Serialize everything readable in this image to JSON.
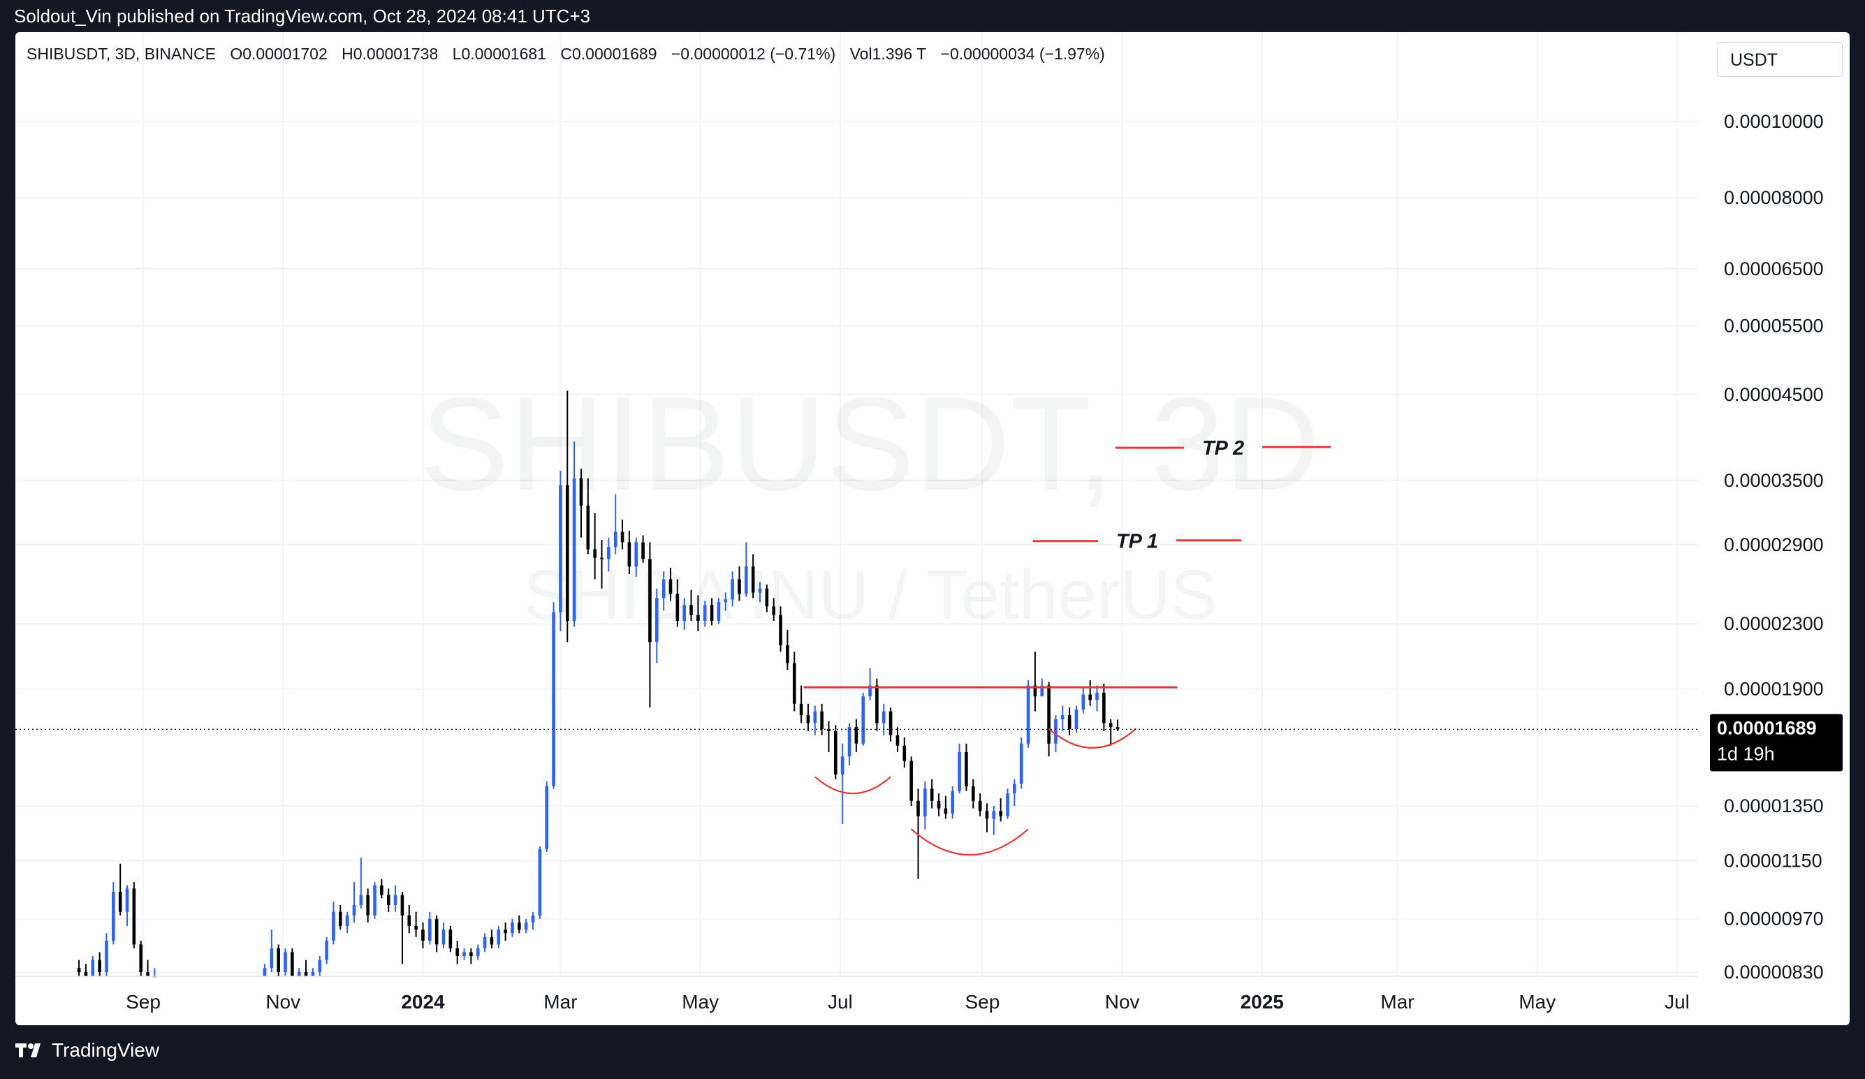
{
  "header": {
    "published_line": "Soldout_Vin published on TradingView.com, Oct 28, 2024 08:41 UTC+3"
  },
  "legend": {
    "symbol": "SHIBUSDT, 3D, BINANCE",
    "open": "O0.00001702",
    "high": "H0.00001738",
    "low": "L0.00001681",
    "close": "C0.00001689",
    "change": "−0.00000012 (−0.71%)",
    "volume": "Vol1.396 T",
    "vol_change": "−0.00000034 (−1.97%)"
  },
  "currency_button": "USDT",
  "watermark": {
    "symbol": "SHIBUSDT, 3D",
    "description": "SHIBA INU / TetherUS"
  },
  "price_label": {
    "price": "0.00001689",
    "countdown": "1d 19h"
  },
  "footer": {
    "brand": "TradingView"
  },
  "colors": {
    "up": "#2962ff",
    "down": "#000000",
    "annotation": "#e53935",
    "background": "#131722"
  },
  "chart_data": {
    "type": "candlestick",
    "title": "SHIBUSDT, 3D, BINANCE",
    "xlabel": "",
    "ylabel": "",
    "y_scale": "log",
    "ylim": [
      8.2e-06,
      0.000112
    ],
    "grid": true,
    "y_ticks": [
      "0.00010000",
      "0.00008000",
      "0.00006500",
      "0.00005500",
      "0.00004500",
      "0.00003500",
      "0.00002900",
      "0.00002300",
      "0.00001900",
      "0.00001350",
      "0.00001150",
      "0.00000970",
      "0.00000830"
    ],
    "x_ticks": [
      {
        "label": "Sep",
        "date": "2023-09-01"
      },
      {
        "label": "Nov",
        "date": "2023-11-01"
      },
      {
        "label": "2024",
        "date": "2024-01-01"
      },
      {
        "label": "Mar",
        "date": "2024-03-01"
      },
      {
        "label": "May",
        "date": "2024-05-01"
      },
      {
        "label": "Jul",
        "date": "2024-07-01"
      },
      {
        "label": "Sep",
        "date": "2024-09-01"
      },
      {
        "label": "Nov",
        "date": "2024-11-01"
      },
      {
        "label": "2025",
        "date": "2025-01-01"
      },
      {
        "label": "Mar",
        "date": "2025-03-01"
      },
      {
        "label": "May",
        "date": "2025-05-01"
      },
      {
        "label": "Jul",
        "date": "2025-07-01"
      }
    ],
    "last_price": 1.689e-05,
    "candles": [
      [
        "2023-08-04",
        8.4e-06,
        8.6e-06,
        8.1e-06,
        8.3e-06
      ],
      [
        "2023-08-07",
        8.3e-06,
        8.5e-06,
        8.1e-06,
        8.2e-06
      ],
      [
        "2023-08-10",
        8.2e-06,
        8.7e-06,
        8.1e-06,
        8.6e-06
      ],
      [
        "2023-08-13",
        8.6e-06,
        8.8e-06,
        8.2e-06,
        8.3e-06
      ],
      [
        "2023-08-16",
        8.3e-06,
        9.3e-06,
        8.2e-06,
        9.1e-06
      ],
      [
        "2023-08-19",
        9.1e-06,
        1.08e-05,
        9e-06,
        1.05e-05
      ],
      [
        "2023-08-22",
        1.05e-05,
        1.14e-05,
        9.8e-06,
        9.9e-06
      ],
      [
        "2023-08-25",
        9.9e-06,
        1.07e-05,
        9.5e-06,
        1.06e-05
      ],
      [
        "2023-08-28",
        1.06e-05,
        1.08e-05,
        8.9e-06,
        9e-06
      ],
      [
        "2023-08-31",
        9e-06,
        9.1e-06,
        8.2e-06,
        8.3e-06
      ],
      [
        "2023-09-03",
        8.3e-06,
        8.6e-06,
        8.1e-06,
        8.2e-06
      ],
      [
        "2023-09-06",
        8.2e-06,
        8.4e-06,
        8.1e-06,
        8.2e-06
      ],
      [
        "2023-10-24",
        8.1e-06,
        8.5e-06,
        8.1e-06,
        8.4e-06
      ],
      [
        "2023-10-27",
        8.4e-06,
        9.4e-06,
        8.3e-06,
        8.9e-06
      ],
      [
        "2023-10-30",
        8.9e-06,
        9e-06,
        8.2e-06,
        8.3e-06
      ],
      [
        "2023-11-02",
        8.3e-06,
        8.9e-06,
        8.2e-06,
        8.8e-06
      ],
      [
        "2023-11-05",
        8.8e-06,
        8.9e-06,
        8.1e-06,
        8.2e-06
      ],
      [
        "2023-11-08",
        8.2e-06,
        8.4e-06,
        8.1e-06,
        8.3e-06
      ],
      [
        "2023-11-11",
        8.3e-06,
        8.6e-06,
        8.1e-06,
        8.2e-06
      ],
      [
        "2023-11-14",
        8.2e-06,
        8.4e-06,
        8.1e-06,
        8.3e-06
      ],
      [
        "2023-11-17",
        8.3e-06,
        8.7e-06,
        8.2e-06,
        8.6e-06
      ],
      [
        "2023-11-20",
        8.6e-06,
        9.2e-06,
        8.5e-06,
        9.1e-06
      ],
      [
        "2023-11-23",
        9.1e-06,
        1.02e-05,
        9e-06,
        9.9e-06
      ],
      [
        "2023-11-26",
        9.9e-06,
        1.01e-05,
        9.4e-06,
        9.5e-06
      ],
      [
        "2023-11-29",
        9.5e-06,
        9.9e-06,
        9.3e-06,
        9.8e-06
      ],
      [
        "2023-12-02",
        9.8e-06,
        1.08e-05,
        9.6e-06,
        1.01e-05
      ],
      [
        "2023-12-05",
        1.01e-05,
        1.16e-05,
        1e-05,
        1.04e-05
      ],
      [
        "2023-12-08",
        1.04e-05,
        1.06e-05,
        9.6e-06,
        9.8e-06
      ],
      [
        "2023-12-11",
        9.8e-06,
        1.08e-05,
        9.7e-06,
        1.07e-05
      ],
      [
        "2023-12-14",
        1.07e-05,
        1.09e-05,
        1.03e-05,
        1.04e-05
      ],
      [
        "2023-12-17",
        1.04e-05,
        1.06e-05,
        9.9e-06,
        1.01e-05
      ],
      [
        "2023-12-20",
        1.01e-05,
        1.07e-05,
        9.9e-06,
        1.04e-05
      ],
      [
        "2023-12-23",
        1.04e-05,
        1.05e-05,
        8.5e-06,
        9.8e-06
      ],
      [
        "2023-12-26",
        9.8e-06,
        1.01e-05,
        9.3e-06,
        9.5e-06
      ],
      [
        "2023-12-29",
        9.5e-06,
        9.9e-06,
        9.2e-06,
        9.4e-06
      ],
      [
        "2024-01-01",
        9.4e-06,
        9.6e-06,
        8.9e-06,
        9.1e-06
      ],
      [
        "2024-01-04",
        9.1e-06,
        9.9e-06,
        9e-06,
        9.7e-06
      ],
      [
        "2024-01-07",
        9.7e-06,
        9.8e-06,
        8.8e-06,
        9e-06
      ],
      [
        "2024-01-10",
        9e-06,
        9.6e-06,
        8.9e-06,
        9.4e-06
      ],
      [
        "2024-01-13",
        9.4e-06,
        9.5e-06,
        8.8e-06,
        8.9e-06
      ],
      [
        "2024-01-16",
        8.9e-06,
        9.1e-06,
        8.5e-06,
        8.7e-06
      ],
      [
        "2024-01-19",
        8.7e-06,
        8.9e-06,
        8.6e-06,
        8.8e-06
      ],
      [
        "2024-01-22",
        8.8e-06,
        8.9e-06,
        8.5e-06,
        8.7e-06
      ],
      [
        "2024-01-25",
        8.7e-06,
        9e-06,
        8.6e-06,
        8.9e-06
      ],
      [
        "2024-01-28",
        8.9e-06,
        9.3e-06,
        8.8e-06,
        9.2e-06
      ],
      [
        "2024-01-31",
        9.2e-06,
        9.4e-06,
        8.9e-06,
        9e-06
      ],
      [
        "2024-02-03",
        9e-06,
        9.5e-06,
        8.9e-06,
        9.4e-06
      ],
      [
        "2024-02-06",
        9.4e-06,
        9.6e-06,
        9.1e-06,
        9.3e-06
      ],
      [
        "2024-02-09",
        9.3e-06,
        9.7e-06,
        9.2e-06,
        9.6e-06
      ],
      [
        "2024-02-12",
        9.6e-06,
        9.8e-06,
        9.3e-06,
        9.4e-06
      ],
      [
        "2024-02-15",
        9.4e-06,
        9.7e-06,
        9.3e-06,
        9.6e-06
      ],
      [
        "2024-02-18",
        9.6e-06,
        9.9e-06,
        9.4e-06,
        9.8e-06
      ],
      [
        "2024-02-21",
        9.8e-06,
        1.2e-05,
        9.7e-06,
        1.19e-05
      ],
      [
        "2024-02-24",
        1.19e-05,
        1.45e-05,
        1.18e-05,
        1.43e-05
      ],
      [
        "2024-02-27",
        1.43e-05,
        2.45e-05,
        1.42e-05,
        2.38e-05
      ],
      [
        "2024-03-01",
        2.38e-05,
        3.6e-05,
        2.25e-05,
        3.45e-05
      ],
      [
        "2024-03-04",
        3.45e-05,
        4.55e-05,
        2.18e-05,
        2.32e-05
      ],
      [
        "2024-03-07",
        2.32e-05,
        3.92e-05,
        2.28e-05,
        3.52e-05
      ],
      [
        "2024-03-10",
        3.52e-05,
        3.62e-05,
        2.96e-05,
        3.25e-05
      ],
      [
        "2024-03-13",
        3.25e-05,
        3.52e-05,
        2.82e-05,
        2.86e-05
      ],
      [
        "2024-03-16",
        2.86e-05,
        3.18e-05,
        2.62e-05,
        2.79e-05
      ],
      [
        "2024-03-19",
        2.79e-05,
        2.94e-05,
        2.55e-05,
        2.78e-05
      ],
      [
        "2024-03-22",
        2.78e-05,
        2.96e-05,
        2.68e-05,
        2.88e-05
      ],
      [
        "2024-03-25",
        2.88e-05,
        3.36e-05,
        2.82e-05,
        3.01e-05
      ],
      [
        "2024-03-28",
        3.01e-05,
        3.12e-05,
        2.86e-05,
        2.92e-05
      ],
      [
        "2024-03-31",
        2.92e-05,
        3.02e-05,
        2.66e-05,
        2.72e-05
      ],
      [
        "2024-04-03",
        2.72e-05,
        2.96e-05,
        2.64e-05,
        2.92e-05
      ],
      [
        "2024-04-06",
        2.92e-05,
        2.98e-05,
        2.75e-05,
        2.78e-05
      ],
      [
        "2024-04-09",
        2.78e-05,
        2.92e-05,
        1.8e-05,
        2.18e-05
      ],
      [
        "2024-04-12",
        2.18e-05,
        2.55e-05,
        2.05e-05,
        2.48e-05
      ],
      [
        "2024-04-15",
        2.48e-05,
        2.68e-05,
        2.39e-05,
        2.62e-05
      ],
      [
        "2024-04-18",
        2.62e-05,
        2.71e-05,
        2.46e-05,
        2.51e-05
      ],
      [
        "2024-04-21",
        2.51e-05,
        2.62e-05,
        2.28e-05,
        2.32e-05
      ],
      [
        "2024-04-24",
        2.32e-05,
        2.48e-05,
        2.26e-05,
        2.43e-05
      ],
      [
        "2024-04-27",
        2.43e-05,
        2.54e-05,
        2.32e-05,
        2.36e-05
      ],
      [
        "2024-04-30",
        2.36e-05,
        2.5e-05,
        2.25e-05,
        2.32e-05
      ],
      [
        "2024-05-03",
        2.32e-05,
        2.46e-05,
        2.28e-05,
        2.43e-05
      ],
      [
        "2024-05-06",
        2.43e-05,
        2.48e-05,
        2.29e-05,
        2.32e-05
      ],
      [
        "2024-05-09",
        2.32e-05,
        2.48e-05,
        2.3e-05,
        2.45e-05
      ],
      [
        "2024-05-12",
        2.45e-05,
        2.52e-05,
        2.39e-05,
        2.47e-05
      ],
      [
        "2024-05-15",
        2.47e-05,
        2.68e-05,
        2.42e-05,
        2.62e-05
      ],
      [
        "2024-05-18",
        2.62e-05,
        2.72e-05,
        2.46e-05,
        2.51e-05
      ],
      [
        "2024-05-21",
        2.51e-05,
        2.92e-05,
        2.49e-05,
        2.72e-05
      ],
      [
        "2024-05-24",
        2.72e-05,
        2.82e-05,
        2.48e-05,
        2.52e-05
      ],
      [
        "2024-05-27",
        2.52e-05,
        2.6e-05,
        2.45e-05,
        2.55e-05
      ],
      [
        "2024-05-30",
        2.55e-05,
        2.58e-05,
        2.38e-05,
        2.42e-05
      ],
      [
        "2024-06-02",
        2.42e-05,
        2.48e-05,
        2.32e-05,
        2.36e-05
      ],
      [
        "2024-06-05",
        2.36e-05,
        2.42e-05,
        2.12e-05,
        2.16e-05
      ],
      [
        "2024-06-08",
        2.16e-05,
        2.26e-05,
        2.01e-05,
        2.05e-05
      ],
      [
        "2024-06-11",
        2.05e-05,
        2.12e-05,
        1.78e-05,
        1.82e-05
      ],
      [
        "2024-06-14",
        1.82e-05,
        1.92e-05,
        1.72e-05,
        1.76e-05
      ],
      [
        "2024-06-17",
        1.76e-05,
        1.82e-05,
        1.68e-05,
        1.72e-05
      ],
      [
        "2024-06-20",
        1.72e-05,
        1.81e-05,
        1.66e-05,
        1.78e-05
      ],
      [
        "2024-06-23",
        1.78e-05,
        1.82e-05,
        1.66e-05,
        1.69e-05
      ],
      [
        "2024-06-26",
        1.69e-05,
        1.73e-05,
        1.58e-05,
        1.68e-05
      ],
      [
        "2024-06-29",
        1.68e-05,
        1.71e-05,
        1.46e-05,
        1.48e-05
      ],
      [
        "2024-07-02",
        1.48e-05,
        1.62e-05,
        1.28e-05,
        1.56e-05
      ],
      [
        "2024-07-05",
        1.56e-05,
        1.72e-05,
        1.52e-05,
        1.7e-05
      ],
      [
        "2024-07-08",
        1.7e-05,
        1.74e-05,
        1.58e-05,
        1.62e-05
      ],
      [
        "2024-07-11",
        1.62e-05,
        1.88e-05,
        1.61e-05,
        1.86e-05
      ],
      [
        "2024-07-14",
        1.86e-05,
        2.02e-05,
        1.84e-05,
        1.92e-05
      ],
      [
        "2024-07-17",
        1.92e-05,
        1.96e-05,
        1.68e-05,
        1.72e-05
      ],
      [
        "2024-07-20",
        1.72e-05,
        1.82e-05,
        1.66e-05,
        1.78e-05
      ],
      [
        "2024-07-23",
        1.78e-05,
        1.8e-05,
        1.63e-05,
        1.66e-05
      ],
      [
        "2024-07-26",
        1.66e-05,
        1.7e-05,
        1.58e-05,
        1.61e-05
      ],
      [
        "2024-07-29",
        1.61e-05,
        1.65e-05,
        1.51e-05,
        1.54e-05
      ],
      [
        "2024-08-01",
        1.54e-05,
        1.56e-05,
        1.35e-05,
        1.37e-05
      ],
      [
        "2024-08-04",
        1.37e-05,
        1.42e-05,
        1.09e-05,
        1.31e-05
      ],
      [
        "2024-08-07",
        1.31e-05,
        1.45e-05,
        1.26e-05,
        1.42e-05
      ],
      [
        "2024-08-10",
        1.42e-05,
        1.46e-05,
        1.34e-05,
        1.37e-05
      ],
      [
        "2024-08-13",
        1.37e-05,
        1.4e-05,
        1.31e-05,
        1.34e-05
      ],
      [
        "2024-08-16",
        1.34e-05,
        1.39e-05,
        1.3e-05,
        1.32e-05
      ],
      [
        "2024-08-19",
        1.32e-05,
        1.43e-05,
        1.3e-05,
        1.41e-05
      ],
      [
        "2024-08-22",
        1.41e-05,
        1.62e-05,
        1.4e-05,
        1.58e-05
      ],
      [
        "2024-08-25",
        1.58e-05,
        1.62e-05,
        1.41e-05,
        1.43e-05
      ],
      [
        "2024-08-28",
        1.43e-05,
        1.46e-05,
        1.34e-05,
        1.37e-05
      ],
      [
        "2024-08-31",
        1.37e-05,
        1.4e-05,
        1.31e-05,
        1.33e-05
      ],
      [
        "2024-09-03",
        1.33e-05,
        1.36e-05,
        1.25e-05,
        1.3e-05
      ],
      [
        "2024-09-06",
        1.3e-05,
        1.35e-05,
        1.24e-05,
        1.33e-05
      ],
      [
        "2024-09-09",
        1.33e-05,
        1.38e-05,
        1.29e-05,
        1.31e-05
      ],
      [
        "2024-09-12",
        1.31e-05,
        1.42e-05,
        1.3e-05,
        1.4e-05
      ],
      [
        "2024-09-15",
        1.4e-05,
        1.46e-05,
        1.35e-05,
        1.44e-05
      ],
      [
        "2024-09-18",
        1.44e-05,
        1.65e-05,
        1.42e-05,
        1.62e-05
      ],
      [
        "2024-09-21",
        1.62e-05,
        1.95e-05,
        1.6e-05,
        1.92e-05
      ],
      [
        "2024-09-24",
        1.92e-05,
        2.12e-05,
        1.78e-05,
        1.86e-05
      ],
      [
        "2024-09-27",
        1.86e-05,
        1.96e-05,
        1.86e-05,
        1.92e-05
      ],
      [
        "2024-09-30",
        1.92e-05,
        1.94e-05,
        1.56e-05,
        1.62e-05
      ],
      [
        "2024-10-03",
        1.62e-05,
        1.76e-05,
        1.58e-05,
        1.74e-05
      ],
      [
        "2024-10-06",
        1.74e-05,
        1.81e-05,
        1.68e-05,
        1.76e-05
      ],
      [
        "2024-10-09",
        1.76e-05,
        1.8e-05,
        1.66e-05,
        1.69e-05
      ],
      [
        "2024-10-12",
        1.69e-05,
        1.81e-05,
        1.67e-05,
        1.79e-05
      ],
      [
        "2024-10-15",
        1.79e-05,
        1.91e-05,
        1.77e-05,
        1.87e-05
      ],
      [
        "2024-10-18",
        1.87e-05,
        1.95e-05,
        1.81e-05,
        1.84e-05
      ],
      [
        "2024-10-21",
        1.84e-05,
        1.92e-05,
        1.78e-05,
        1.88e-05
      ],
      [
        "2024-10-24",
        1.88e-05,
        1.93e-05,
        1.68e-05,
        1.72e-05
      ],
      [
        "2024-10-27",
        1.72e-05,
        1.74e-05,
        1.61e-05,
        1.7e-05
      ],
      [
        "2024-10-30",
        1.7e-05,
        1.738e-05,
        1.681e-05,
        1.689e-05
      ]
    ],
    "annotations": {
      "resistance": {
        "price": 1.91e-05,
        "from": "2024-06-15",
        "to": "2024-11-25"
      },
      "tp1": {
        "label": "TP 1",
        "price": 2.93e-05,
        "from": "2024-09-23",
        "to": "2024-12-23"
      },
      "tp2": {
        "label": "TP 2",
        "price": 3.85e-05,
        "from": "2024-10-29",
        "to": "2025-01-31"
      },
      "arcs": [
        {
          "name": "left-shoulder",
          "from": "2024-06-20",
          "to": "2024-07-23",
          "bottom_price": 1.4e-05
        },
        {
          "name": "head",
          "from": "2024-08-01",
          "to": "2024-09-21",
          "bottom_price": 1.17e-05
        },
        {
          "name": "right-shoulder",
          "from": "2024-09-30",
          "to": "2024-11-07",
          "bottom_price": 1.6e-05
        }
      ]
    }
  }
}
